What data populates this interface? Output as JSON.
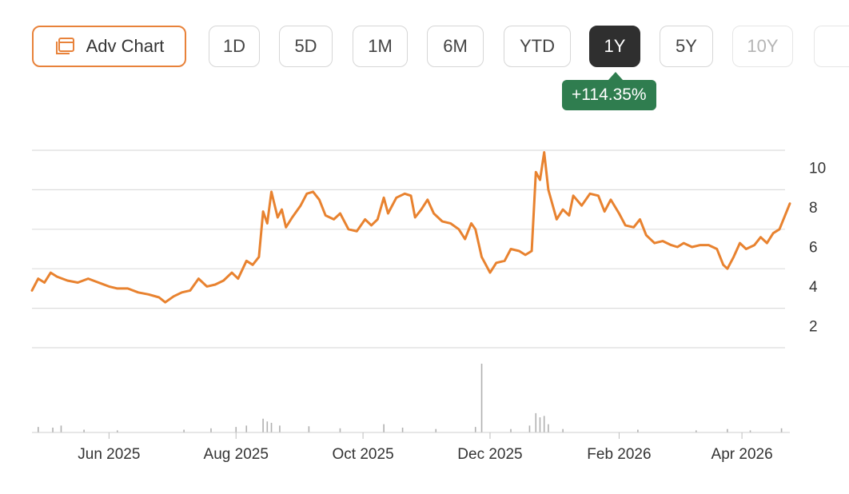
{
  "toolbar": {
    "adv_chart_label": "Adv Chart",
    "ranges": [
      {
        "label": "1D",
        "state": "normal"
      },
      {
        "label": "5D",
        "state": "normal"
      },
      {
        "label": "1M",
        "state": "normal"
      },
      {
        "label": "6M",
        "state": "normal"
      },
      {
        "label": "YTD",
        "state": "normal"
      },
      {
        "label": "1Y",
        "state": "active"
      },
      {
        "label": "5Y",
        "state": "normal"
      },
      {
        "label": "10Y",
        "state": "faded"
      }
    ]
  },
  "change_badge": "+114.35%",
  "colors": {
    "line": "#e8822f",
    "badge": "#2f7d4f",
    "active": "#2f2f2f",
    "grid": "#dddddd",
    "volume": "#b0b0b0"
  },
  "icons": {
    "adv_chart": "chart-window-icon"
  },
  "chart_data": {
    "type": "line",
    "title": "",
    "xlabel": "",
    "ylabel": "",
    "x_range": [
      "2025-04-25",
      "2026-04-24"
    ],
    "ylim": [
      1,
      11
    ],
    "yticks": [
      2,
      4,
      6,
      8,
      10
    ],
    "x_tick_labels": [
      {
        "label": "Jun 2025",
        "date": "2025-06-01"
      },
      {
        "label": "Aug 2025",
        "date": "2025-08-01"
      },
      {
        "label": "Oct 2025",
        "date": "2025-10-01"
      },
      {
        "label": "Dec 2025",
        "date": "2025-12-01"
      },
      {
        "label": "Feb 2026",
        "date": "2026-02-01"
      },
      {
        "label": "Apr 2026",
        "date": "2026-04-01"
      }
    ],
    "grid": true,
    "series": [
      {
        "points": [
          [
            "2025-04-25",
            3.9
          ],
          [
            "2025-04-28",
            4.5
          ],
          [
            "2025-05-01",
            4.3
          ],
          [
            "2025-05-04",
            4.8
          ],
          [
            "2025-05-07",
            4.6
          ],
          [
            "2025-05-12",
            4.4
          ],
          [
            "2025-05-17",
            4.3
          ],
          [
            "2025-05-22",
            4.5
          ],
          [
            "2025-05-27",
            4.3
          ],
          [
            "2025-06-01",
            4.1
          ],
          [
            "2025-06-05",
            4.0
          ],
          [
            "2025-06-10",
            4.0
          ],
          [
            "2025-06-15",
            3.8
          ],
          [
            "2025-06-20",
            3.7
          ],
          [
            "2025-06-25",
            3.55
          ],
          [
            "2025-06-28",
            3.3
          ],
          [
            "2025-07-02",
            3.6
          ],
          [
            "2025-07-06",
            3.8
          ],
          [
            "2025-07-10",
            3.9
          ],
          [
            "2025-07-14",
            4.5
          ],
          [
            "2025-07-18",
            4.1
          ],
          [
            "2025-07-22",
            4.2
          ],
          [
            "2025-07-26",
            4.4
          ],
          [
            "2025-07-30",
            4.8
          ],
          [
            "2025-08-02",
            4.5
          ],
          [
            "2025-08-06",
            5.4
          ],
          [
            "2025-08-09",
            5.2
          ],
          [
            "2025-08-12",
            5.6
          ],
          [
            "2025-08-14",
            7.9
          ],
          [
            "2025-08-16",
            7.3
          ],
          [
            "2025-08-18",
            8.9
          ],
          [
            "2025-08-21",
            7.6
          ],
          [
            "2025-08-23",
            8.0
          ],
          [
            "2025-08-25",
            7.1
          ],
          [
            "2025-08-28",
            7.6
          ],
          [
            "2025-09-01",
            8.2
          ],
          [
            "2025-09-04",
            8.8
          ],
          [
            "2025-09-07",
            8.9
          ],
          [
            "2025-09-10",
            8.5
          ],
          [
            "2025-09-13",
            7.7
          ],
          [
            "2025-09-17",
            7.5
          ],
          [
            "2025-09-20",
            7.8
          ],
          [
            "2025-09-24",
            7.0
          ],
          [
            "2025-09-28",
            6.9
          ],
          [
            "2025-10-02",
            7.5
          ],
          [
            "2025-10-05",
            7.2
          ],
          [
            "2025-10-08",
            7.5
          ],
          [
            "2025-10-11",
            8.6
          ],
          [
            "2025-10-13",
            7.8
          ],
          [
            "2025-10-17",
            8.6
          ],
          [
            "2025-10-21",
            8.8
          ],
          [
            "2025-10-24",
            8.7
          ],
          [
            "2025-10-26",
            7.6
          ],
          [
            "2025-10-29",
            8.0
          ],
          [
            "2025-11-01",
            8.5
          ],
          [
            "2025-11-04",
            7.8
          ],
          [
            "2025-11-08",
            7.4
          ],
          [
            "2025-11-12",
            7.3
          ],
          [
            "2025-11-16",
            7.0
          ],
          [
            "2025-11-19",
            6.5
          ],
          [
            "2025-11-22",
            7.3
          ],
          [
            "2025-11-24",
            7.0
          ],
          [
            "2025-11-27",
            5.6
          ],
          [
            "2025-11-29",
            5.2
          ],
          [
            "2025-12-01",
            4.8
          ],
          [
            "2025-12-04",
            5.3
          ],
          [
            "2025-12-08",
            5.4
          ],
          [
            "2025-12-11",
            6.0
          ],
          [
            "2025-12-15",
            5.9
          ],
          [
            "2025-12-18",
            5.7
          ],
          [
            "2025-12-21",
            5.9
          ],
          [
            "2025-12-23",
            9.9
          ],
          [
            "2025-12-25",
            9.5
          ],
          [
            "2025-12-27",
            10.9
          ],
          [
            "2025-12-29",
            9.0
          ],
          [
            "2026-01-02",
            7.5
          ],
          [
            "2026-01-05",
            8.0
          ],
          [
            "2026-01-08",
            7.7
          ],
          [
            "2026-01-10",
            8.7
          ],
          [
            "2026-01-14",
            8.2
          ],
          [
            "2026-01-18",
            8.8
          ],
          [
            "2026-01-22",
            8.7
          ],
          [
            "2026-01-25",
            7.9
          ],
          [
            "2026-01-28",
            8.5
          ],
          [
            "2026-02-01",
            7.8
          ],
          [
            "2026-02-04",
            7.2
          ],
          [
            "2026-02-08",
            7.1
          ],
          [
            "2026-02-11",
            7.5
          ],
          [
            "2026-02-14",
            6.7
          ],
          [
            "2026-02-18",
            6.3
          ],
          [
            "2026-02-22",
            6.4
          ],
          [
            "2026-02-26",
            6.2
          ],
          [
            "2026-03-01",
            6.1
          ],
          [
            "2026-03-04",
            6.3
          ],
          [
            "2026-03-08",
            6.1
          ],
          [
            "2026-03-12",
            6.2
          ],
          [
            "2026-03-16",
            6.2
          ],
          [
            "2026-03-20",
            6.0
          ],
          [
            "2026-03-23",
            5.2
          ],
          [
            "2026-03-25",
            5.0
          ],
          [
            "2026-03-28",
            5.6
          ],
          [
            "2026-03-31",
            6.3
          ],
          [
            "2026-04-03",
            6.0
          ],
          [
            "2026-04-07",
            6.2
          ],
          [
            "2026-04-10",
            6.6
          ],
          [
            "2026-04-13",
            6.3
          ],
          [
            "2026-04-16",
            6.8
          ],
          [
            "2026-04-19",
            7.0
          ],
          [
            "2026-04-24",
            8.3
          ]
        ]
      }
    ],
    "volume": [
      [
        "2025-04-28",
        0.08
      ],
      [
        "2025-05-05",
        0.07
      ],
      [
        "2025-05-09",
        0.1
      ],
      [
        "2025-05-20",
        0.04
      ],
      [
        "2025-06-05",
        0.03
      ],
      [
        "2025-07-07",
        0.04
      ],
      [
        "2025-07-20",
        0.06
      ],
      [
        "2025-08-01",
        0.08
      ],
      [
        "2025-08-06",
        0.1
      ],
      [
        "2025-08-14",
        0.2
      ],
      [
        "2025-08-16",
        0.16
      ],
      [
        "2025-08-18",
        0.14
      ],
      [
        "2025-08-22",
        0.1
      ],
      [
        "2025-09-05",
        0.09
      ],
      [
        "2025-09-20",
        0.06
      ],
      [
        "2025-10-11",
        0.12
      ],
      [
        "2025-10-20",
        0.07
      ],
      [
        "2025-11-05",
        0.05
      ],
      [
        "2025-11-24",
        0.08
      ],
      [
        "2025-11-27",
        1.0
      ],
      [
        "2025-12-11",
        0.05
      ],
      [
        "2025-12-20",
        0.1
      ],
      [
        "2025-12-23",
        0.28
      ],
      [
        "2025-12-25",
        0.22
      ],
      [
        "2025-12-27",
        0.24
      ],
      [
        "2025-12-29",
        0.12
      ],
      [
        "2026-01-05",
        0.05
      ],
      [
        "2026-02-10",
        0.04
      ],
      [
        "2026-03-10",
        0.03
      ],
      [
        "2026-03-25",
        0.05
      ],
      [
        "2026-04-05",
        0.03
      ],
      [
        "2026-04-20",
        0.06
      ]
    ]
  }
}
